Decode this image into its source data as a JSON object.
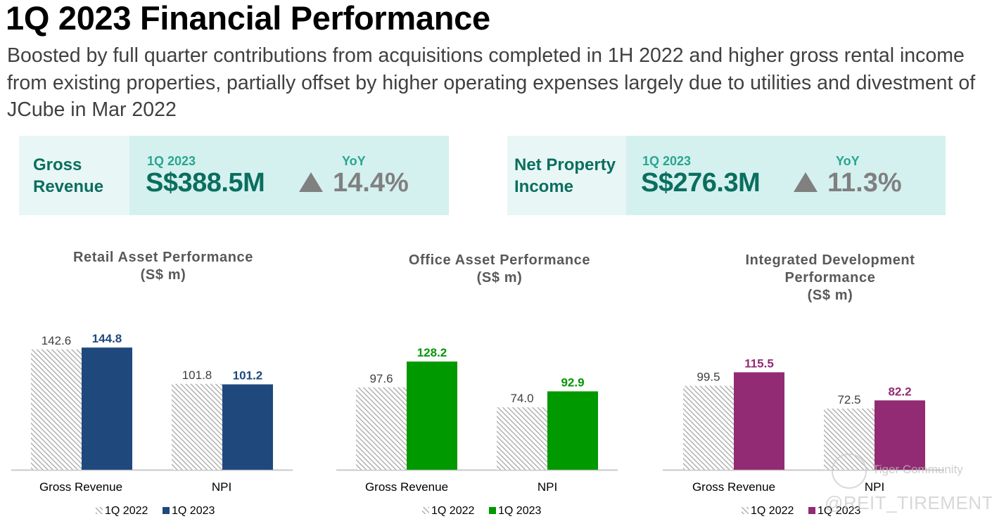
{
  "header": {
    "title": "1Q 2023 Financial Performance",
    "subtitle": "Boosted by full quarter contributions from acquisitions completed in 1H 2022 and higher gross rental income from existing properties, partially offset by higher operating expenses largely due to utilities and divestment of JCube in Mar 2022"
  },
  "kpis": [
    {
      "label_line1": "Gross",
      "label_line2": "Revenue",
      "period": "1Q 2023",
      "value": "S$388.5M",
      "yoy_label": "YoY",
      "yoy_direction": "up",
      "yoy_value": "14.4%"
    },
    {
      "label_line1": "Net Property",
      "label_line2": "Income",
      "period": "1Q 2023",
      "value": "S$276.3M",
      "yoy_label": "YoY",
      "yoy_direction": "up",
      "yoy_value": "11.3%"
    }
  ],
  "colors": {
    "kpi_label_text": "#0b6e5f",
    "kpi_accent": "#2aa58f",
    "yoy_grey": "#808080",
    "prior_year_hatch": "#a6a6a6",
    "retail": "#1f497d",
    "office": "#009900",
    "integrated": "#922b73"
  },
  "chart_data": [
    {
      "type": "bar",
      "title_lines": [
        "Retail Asset Performance",
        "(S$ m)"
      ],
      "categories": [
        "Gross Revenue",
        "NPI"
      ],
      "series": [
        {
          "name": "1Q 2022",
          "values": [
            142.6,
            101.8
          ],
          "labels": [
            "142.6",
            "101.8"
          ],
          "style": "hatched",
          "color": "#a6a6a6"
        },
        {
          "name": "1Q 2023",
          "values": [
            144.8,
            101.2
          ],
          "labels": [
            "144.8",
            "101.2"
          ],
          "style": "solid",
          "color": "#1f497d"
        }
      ],
      "legend": [
        "1Q 2022",
        "1Q 2023"
      ],
      "legend_position": "bottom",
      "ylim": [
        0,
        160
      ],
      "grid": false,
      "xlabel": "",
      "ylabel": ""
    },
    {
      "type": "bar",
      "title_lines": [
        "Office Asset Performance",
        "(S$ m)"
      ],
      "categories": [
        "Gross Revenue",
        "NPI"
      ],
      "series": [
        {
          "name": "1Q 2022",
          "values": [
            97.6,
            74.0
          ],
          "labels": [
            "97.6",
            "74.0"
          ],
          "style": "hatched",
          "color": "#a6a6a6"
        },
        {
          "name": "1Q 2023",
          "values": [
            128.2,
            92.9
          ],
          "labels": [
            "128.2",
            "92.9"
          ],
          "style": "solid",
          "color": "#009900"
        }
      ],
      "legend": [
        "1Q 2022",
        "1Q 2023"
      ],
      "legend_position": "bottom",
      "ylim": [
        0,
        160
      ],
      "grid": false,
      "xlabel": "",
      "ylabel": ""
    },
    {
      "type": "bar",
      "title_lines": [
        "Integrated Development",
        "Performance",
        "(S$ m)"
      ],
      "categories": [
        "Gross Revenue",
        "NPI"
      ],
      "series": [
        {
          "name": "1Q 2022",
          "values": [
            99.5,
            72.5
          ],
          "labels": [
            "99.5",
            "72.5"
          ],
          "style": "hatched",
          "color": "#a6a6a6"
        },
        {
          "name": "1Q 2023",
          "values": [
            115.5,
            82.2
          ],
          "labels": [
            "115.5",
            "82.2"
          ],
          "style": "solid",
          "color": "#922b73"
        }
      ],
      "legend": [
        "1Q 2022",
        "1Q 2023"
      ],
      "legend_position": "bottom",
      "ylim": [
        0,
        160
      ],
      "grid": false,
      "xlabel": "",
      "ylabel": ""
    }
  ],
  "watermark": {
    "line1": "Tiger Community",
    "line2": "@REIT_TIREMENT"
  }
}
